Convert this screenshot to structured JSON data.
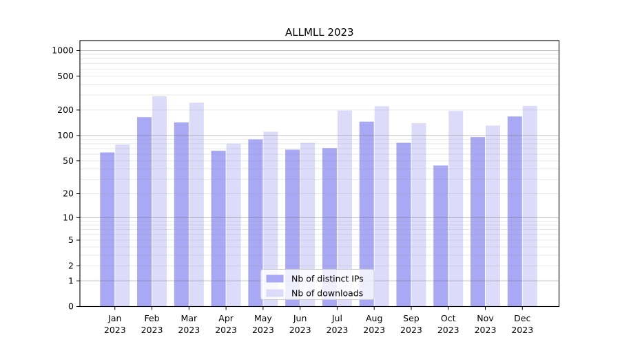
{
  "figure": {
    "background": "#ffffff"
  },
  "chart_data": {
    "type": "bar",
    "title": "ALLMLL 2023",
    "categories": [
      "Jan",
      "Feb",
      "Mar",
      "Apr",
      "May",
      "Jun",
      "Jul",
      "Aug",
      "Sep",
      "Oct",
      "Nov",
      "Dec"
    ],
    "category_year_suffix": "2023",
    "series": [
      {
        "name": "Nb of distinct IPs",
        "color": "#a8a8f5",
        "values": [
          63,
          165,
          143,
          66,
          90,
          68,
          71,
          146,
          82,
          44,
          96,
          168
        ]
      },
      {
        "name": "Nb of downloads",
        "color": "#dcdcfa",
        "values": [
          78,
          290,
          244,
          80,
          111,
          82,
          197,
          222,
          140,
          195,
          131,
          224
        ]
      }
    ],
    "y_ticks": [
      0,
      1,
      2,
      5,
      10,
      20,
      50,
      100,
      200,
      500,
      1000
    ],
    "y_scale": "log10(1+v)",
    "ylim": [
      0,
      1200
    ],
    "grid": true,
    "grid_major_at": [
      1,
      10,
      100,
      1000
    ],
    "legend_position": "lower center",
    "colors": {
      "axis": "#000000",
      "grid_major": "rgba(110,110,110,0.45)",
      "grid_minor": "rgba(150,150,150,0.22)",
      "legend_border": "#cccccc",
      "legend_background": "rgba(255,255,255,0.8)"
    }
  }
}
